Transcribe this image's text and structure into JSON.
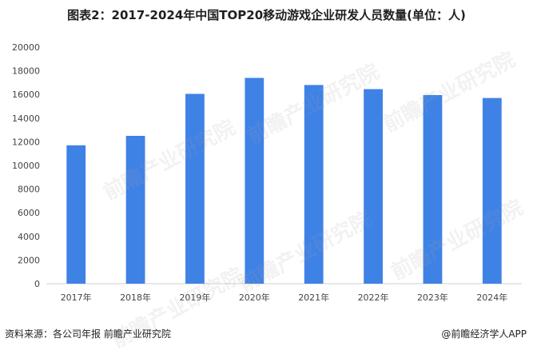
{
  "chart_data": {
    "type": "bar",
    "title": "图表2：2017-2024年中国TOP20移动游戏企业研发人员数量(单位：人)",
    "categories": [
      "2017年",
      "2018年",
      "2019年",
      "2020年",
      "2021年",
      "2022年",
      "2023年",
      "2024年"
    ],
    "values": [
      11700,
      12500,
      16050,
      17400,
      16800,
      16450,
      15950,
      15700
    ],
    "ylim": [
      0,
      20000
    ],
    "yticks": [
      0,
      2000,
      4000,
      6000,
      8000,
      10000,
      12000,
      14000,
      16000,
      18000,
      20000
    ],
    "grid": false,
    "bar_color": "#3f82e6"
  },
  "footer": {
    "source": "资料来源：各公司年报 前瞻产业研究院",
    "credit": "@前瞻经济学人APP"
  },
  "watermark": "前瞻产业研究院"
}
